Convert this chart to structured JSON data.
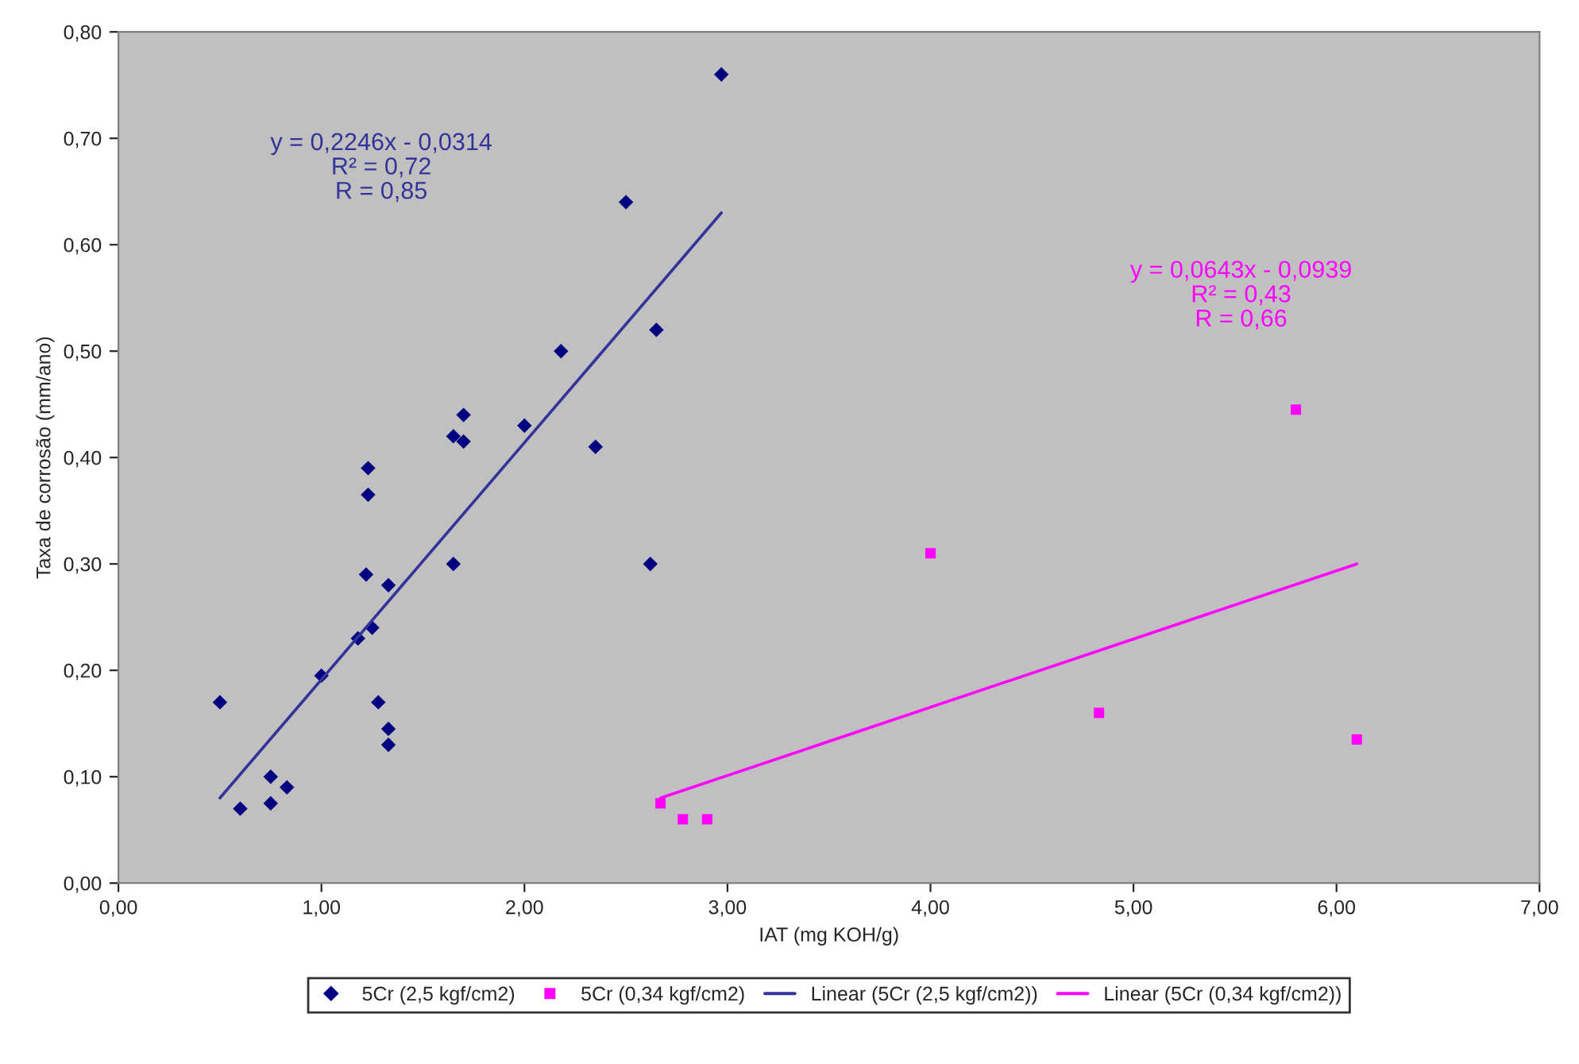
{
  "chart_data": {
    "type": "scatter",
    "xlabel": "IAT (mg KOH/g)",
    "ylabel": "Taxa de corrosão (mm/ano)",
    "xlim": [
      0,
      7
    ],
    "ylim": [
      0,
      0.8
    ],
    "xticks": [
      {
        "value": 0,
        "label": "0,00"
      },
      {
        "value": 1,
        "label": "1,00"
      },
      {
        "value": 2,
        "label": "2,00"
      },
      {
        "value": 3,
        "label": "3,00"
      },
      {
        "value": 4,
        "label": "4,00"
      },
      {
        "value": 5,
        "label": "5,00"
      },
      {
        "value": 6,
        "label": "6,00"
      },
      {
        "value": 7,
        "label": "7,00"
      }
    ],
    "yticks": [
      {
        "value": 0,
        "label": "0,00"
      },
      {
        "value": 0.1,
        "label": "0,10"
      },
      {
        "value": 0.2,
        "label": "0,20"
      },
      {
        "value": 0.3,
        "label": "0,30"
      },
      {
        "value": 0.4,
        "label": "0,40"
      },
      {
        "value": 0.5,
        "label": "0,50"
      },
      {
        "value": 0.6,
        "label": "0,60"
      },
      {
        "value": 0.7,
        "label": "0,70"
      },
      {
        "value": 0.8,
        "label": "0,80"
      }
    ],
    "grid": false,
    "legend": "bottom",
    "series": [
      {
        "name": "5Cr (2,5 kgf/cm2)",
        "marker": "diamond",
        "color": "#000080",
        "x": [
          0.5,
          0.6,
          0.75,
          0.75,
          0.83,
          1.0,
          1.18,
          1.22,
          1.23,
          1.23,
          1.25,
          1.28,
          1.33,
          1.33,
          1.33,
          1.65,
          1.65,
          1.7,
          1.7,
          2.0,
          2.18,
          2.35,
          2.5,
          2.62,
          2.65,
          2.97
        ],
        "values": [
          0.17,
          0.07,
          0.1,
          0.075,
          0.09,
          0.195,
          0.23,
          0.29,
          0.39,
          0.365,
          0.24,
          0.17,
          0.28,
          0.145,
          0.13,
          0.3,
          0.42,
          0.415,
          0.44,
          0.43,
          0.5,
          0.41,
          0.64,
          0.3,
          0.52,
          0.76
        ]
      },
      {
        "name": "5Cr (0,34 kgf/cm2)",
        "marker": "square",
        "color": "#ff00ff",
        "x": [
          2.67,
          2.78,
          2.9,
          4.0,
          4.83,
          5.8,
          6.1
        ],
        "values": [
          0.075,
          0.06,
          0.06,
          0.31,
          0.16,
          0.445,
          0.135
        ]
      },
      {
        "name": "Linear (5Cr (2,5 kgf/cm2))",
        "type": "line",
        "marker": "none",
        "line_style": "solid",
        "color": "#333399",
        "x": [
          0.5,
          2.97
        ],
        "values": [
          0.08,
          0.63
        ]
      },
      {
        "name": "Linear (5Cr (0,34 kgf/cm2))",
        "type": "line",
        "marker": "none",
        "line_style": "solid",
        "color": "#ff00ff",
        "x": [
          2.67,
          6.1
        ],
        "values": [
          0.08,
          0.3
        ]
      }
    ],
    "annotations": [
      "y = 0,2246x - 0,0314\nR² = 0,72\nR = 0,85",
      "y = 0,0643x - 0,0939\nR² = 0,43\nR = 0,66"
    ]
  }
}
